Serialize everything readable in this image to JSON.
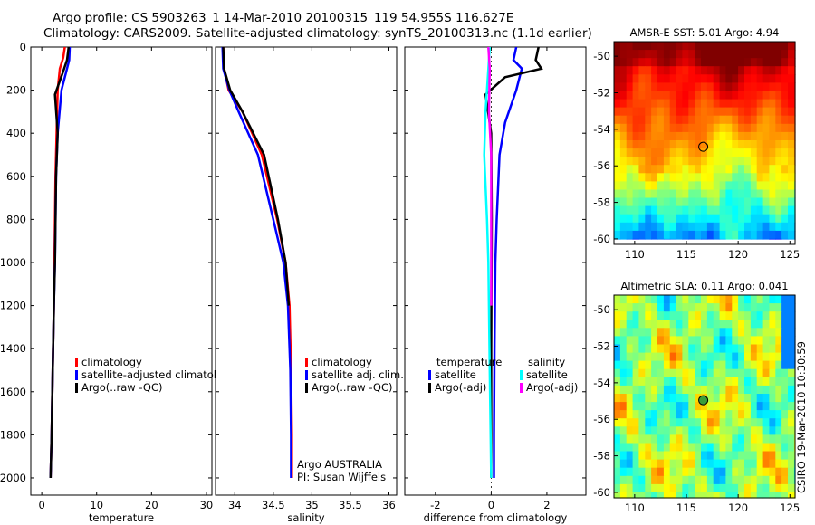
{
  "figure": {
    "title_line1": "Argo profile: CS 5903263_1 14-Mar-2010 20100315_119 54.955S 116.627E",
    "title_line2": "Climatology: CARS2009. Satellite-adjusted climatology: synTS_20100313.nc (1.1d earlier)",
    "stamp": "CSIRO 19-Mar-2010 10:30:59"
  },
  "colors": {
    "climatology": "#ff0000",
    "satellite": "#0000ff",
    "argo": "#000000",
    "satellite_salinity": "#00ffff",
    "argo_salinity_adj": "#ff00ff"
  },
  "chart_data": [
    {
      "type": "line",
      "name": "temperature-profile",
      "xlabel": "temperature",
      "ylabel": "",
      "xlim": [
        -2,
        31
      ],
      "ylim": [
        2080,
        0
      ],
      "y_reversed": true,
      "xticks": [
        0,
        10,
        20,
        30
      ],
      "xtick_labels": [
        "0",
        "10",
        "20",
        "30"
      ],
      "yticks": [
        0,
        200,
        400,
        600,
        800,
        1000,
        1200,
        1400,
        1600,
        1800,
        2000
      ],
      "ytick_labels": [
        "0",
        "200",
        "400",
        "600",
        "800",
        "1000",
        "1200",
        "1400",
        "1600",
        "1800",
        "2000"
      ],
      "legend": [
        "climatology",
        "satellite-adjusted climatology",
        "Argo(..raw -QC)"
      ],
      "series": [
        {
          "name": "climatology",
          "color": "#ff0000",
          "x": [
            4.2,
            3.9,
            3.3,
            2.9,
            2.7,
            2.5,
            2.3,
            2.2,
            2.0,
            1.8,
            1.6
          ],
          "y": [
            0,
            50,
            100,
            200,
            400,
            600,
            1000,
            1200,
            1500,
            1800,
            2000
          ]
        },
        {
          "name": "satellite-adjusted climatology",
          "color": "#0000ff",
          "x": [
            5.1,
            5.0,
            4.4,
            3.6,
            2.9,
            2.6,
            2.4,
            2.2,
            2.0,
            1.8,
            1.6
          ],
          "y": [
            0,
            60,
            120,
            200,
            400,
            600,
            1000,
            1200,
            1500,
            1800,
            2000
          ]
        },
        {
          "name": "Argo(..raw -QC)",
          "color": "#000000",
          "x": [
            4.9,
            4.6,
            3.8,
            2.4,
            2.9,
            2.6,
            2.4,
            2.2,
            2.0,
            1.8,
            1.6
          ],
          "y": [
            0,
            60,
            120,
            220,
            400,
            600,
            1000,
            1200,
            1500,
            1800,
            2000
          ]
        }
      ]
    },
    {
      "type": "line",
      "name": "salinity-profile",
      "xlabel": "salinity",
      "ylabel": "",
      "xlim": [
        33.75,
        36.1
      ],
      "ylim": [
        2080,
        0
      ],
      "y_reversed": true,
      "xticks": [
        34,
        34.5,
        35,
        35.5,
        36
      ],
      "xtick_labels": [
        "34",
        "34.5",
        "35",
        "35.5",
        "36"
      ],
      "legend": [
        "climatology",
        "satellite adj. clim.",
        "Argo(..raw -QC)"
      ],
      "annotations": [
        "Argo AUSTRALIA",
        "PI: Susan Wijffels"
      ],
      "series": [
        {
          "name": "climatology",
          "color": "#ff0000",
          "x": [
            33.85,
            33.86,
            33.92,
            34.1,
            34.35,
            34.55,
            34.66,
            34.71,
            34.73,
            34.74,
            34.74
          ],
          "y": [
            0,
            100,
            200,
            300,
            500,
            800,
            1000,
            1200,
            1500,
            1800,
            2000
          ]
        },
        {
          "name": "satellite adj. clim.",
          "color": "#0000ff",
          "x": [
            33.84,
            33.85,
            33.93,
            34.05,
            34.3,
            34.5,
            34.63,
            34.69,
            34.72,
            34.73,
            34.73
          ],
          "y": [
            0,
            100,
            200,
            300,
            500,
            800,
            1000,
            1200,
            1500,
            1800,
            2000
          ]
        },
        {
          "name": "Argo(..raw -QC)",
          "color": "#000000",
          "x": [
            33.85,
            33.86,
            33.94,
            34.1,
            34.38,
            34.56,
            34.66,
            34.7
          ],
          "y": [
            0,
            100,
            200,
            300,
            500,
            800,
            1000,
            1200
          ]
        }
      ]
    },
    {
      "type": "line",
      "name": "difference-profile",
      "xlabel": "difference from climatology",
      "ylabel": "",
      "xlim": [
        -3.1,
        3.4
      ],
      "ylim": [
        2080,
        0
      ],
      "y_reversed": true,
      "xticks": [
        -2,
        0,
        2
      ],
      "xtick_labels": [
        "-2",
        "0",
        "2"
      ],
      "legend_headers": [
        "temperature",
        "salinity"
      ],
      "legend": [
        "satellite",
        "Argo(-adj)",
        "satellite",
        "Argo(-adj)"
      ],
      "series": [
        {
          "name": "temperature satellite",
          "color": "#0000ff",
          "x": [
            0.9,
            0.8,
            1.1,
            0.9,
            0.5,
            0.3,
            0.2,
            0.15,
            0.12,
            0.1,
            0.1
          ],
          "y": [
            0,
            60,
            100,
            200,
            350,
            500,
            800,
            1000,
            1400,
            1800,
            2000
          ]
        },
        {
          "name": "temperature Argo(-adj)",
          "color": "#000000",
          "x": [
            1.7,
            1.6,
            1.8,
            0.5,
            -0.2,
            0.0,
            0.02,
            0.0,
            0.0
          ],
          "y": [
            0,
            60,
            100,
            140,
            220,
            400,
            800,
            1400,
            2000
          ]
        },
        {
          "name": "salinity satellite",
          "color": "#00ffff",
          "x": [
            -0.05,
            -0.1,
            -0.2,
            -0.25,
            -0.15,
            -0.1,
            -0.05,
            0.0
          ],
          "y": [
            0,
            100,
            300,
            500,
            800,
            1000,
            1500,
            2000
          ]
        },
        {
          "name": "salinity Argo(-adj)",
          "color": "#ff00ff",
          "x": [
            -0.1,
            -0.05,
            -0.08,
            0.0,
            0.0
          ],
          "y": [
            0,
            100,
            300,
            500,
            1200
          ]
        }
      ]
    },
    {
      "type": "heatmap",
      "name": "sst-map",
      "title": "AMSR-E SST: 5.01 Argo: 4.94",
      "xlim": [
        108,
        125.5
      ],
      "ylim": [
        -60.3,
        -49.2
      ],
      "xticks": [
        110,
        115,
        120,
        125
      ],
      "xtick_labels": [
        "110",
        "115",
        "120",
        "125"
      ],
      "yticks": [
        -50,
        -52,
        -54,
        -56,
        -58,
        -60
      ],
      "ytick_labels": [
        "-50",
        "-52",
        "-54",
        "-56",
        "-58",
        "-60"
      ],
      "marker": {
        "lon": 116.627,
        "lat": -54.955
      },
      "field": "SST"
    },
    {
      "type": "heatmap",
      "name": "sla-map",
      "title": "Altimetric SLA: 0.11 Argo: 0.041",
      "xlim": [
        108,
        125.5
      ],
      "ylim": [
        -60.3,
        -49.2
      ],
      "xticks": [
        110,
        115,
        120,
        125
      ],
      "xtick_labels": [
        "110",
        "115",
        "120",
        "125"
      ],
      "yticks": [
        -50,
        -52,
        -54,
        -56,
        -58,
        -60
      ],
      "ytick_labels": [
        "-50",
        "-52",
        "-54",
        "-56",
        "-58",
        "-60"
      ],
      "marker": {
        "lon": 116.627,
        "lat": -54.955
      },
      "field": "SLA"
    }
  ]
}
